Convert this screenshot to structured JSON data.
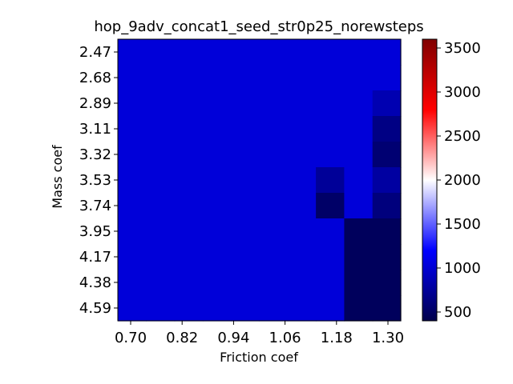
{
  "chart_data": {
    "type": "heatmap",
    "title": "hop_9adv_concat1_seed_str0p25_norewsteps",
    "xlabel": "Friction coef",
    "ylabel": "Mass coef",
    "x_ticks": [
      "0.70",
      "0.82",
      "0.94",
      "1.06",
      "1.18",
      "1.30"
    ],
    "y_ticks": [
      "2.47",
      "2.68",
      "2.89",
      "3.11",
      "3.32",
      "3.53",
      "3.74",
      "3.95",
      "4.17",
      "4.38",
      "4.59"
    ],
    "colorbar": {
      "min": 400,
      "max": 3600,
      "ticks": [
        500,
        1000,
        1500,
        2000,
        2500,
        3000,
        3500
      ],
      "colormap": "seismic"
    },
    "grid_values": [
      [
        1030,
        1030,
        1030,
        1030,
        1030,
        1030,
        1030,
        1030,
        1030,
        1030
      ],
      [
        1030,
        1030,
        1030,
        1030,
        1030,
        1030,
        1030,
        1030,
        1030,
        1030
      ],
      [
        1030,
        1030,
        1030,
        1030,
        1030,
        1030,
        1030,
        1030,
        1030,
        850
      ],
      [
        1030,
        1030,
        1030,
        1030,
        1030,
        1030,
        1030,
        1030,
        1030,
        650
      ],
      [
        1030,
        1030,
        1030,
        1030,
        1030,
        1030,
        1030,
        1030,
        1030,
        570
      ],
      [
        1030,
        1030,
        1030,
        1030,
        1030,
        1030,
        1030,
        740,
        1030,
        780
      ],
      [
        1030,
        1030,
        1030,
        1030,
        1030,
        1030,
        1030,
        520,
        1030,
        620
      ],
      [
        1030,
        1030,
        1030,
        1030,
        1030,
        1030,
        1030,
        1030,
        470,
        470
      ],
      [
        1030,
        1030,
        1030,
        1030,
        1030,
        1030,
        1030,
        1030,
        470,
        470
      ],
      [
        1030,
        1030,
        1030,
        1030,
        1030,
        1030,
        1030,
        1030,
        470,
        470
      ],
      [
        1030,
        1030,
        1030,
        1030,
        1030,
        1030,
        1030,
        1030,
        470,
        470
      ]
    ]
  }
}
